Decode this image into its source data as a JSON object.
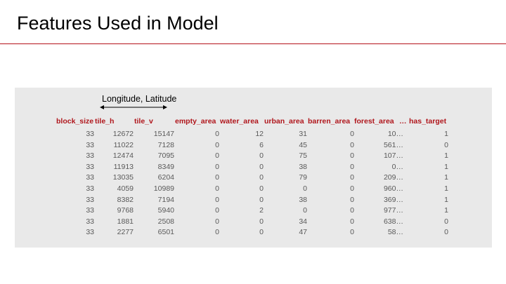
{
  "title": "Features Used in Model",
  "annotation": "Longitude, Latitude",
  "table": {
    "headers": [
      "block_size",
      "tile_h",
      "tile_v",
      "empty_area",
      "water_area",
      "urban_area",
      "barren_area",
      "forest_area",
      "…",
      "has_target"
    ],
    "rows": [
      [
        "33",
        "12672",
        "15147",
        "0",
        "12",
        "31",
        "0",
        "10…",
        "1"
      ],
      [
        "33",
        "11022",
        "7128",
        "0",
        "6",
        "45",
        "0",
        "561…",
        "0"
      ],
      [
        "33",
        "12474",
        "7095",
        "0",
        "0",
        "75",
        "0",
        "107…",
        "1"
      ],
      [
        "33",
        "11913",
        "8349",
        "0",
        "0",
        "38",
        "0",
        "0…",
        "1"
      ],
      [
        "33",
        "13035",
        "6204",
        "0",
        "0",
        "79",
        "0",
        "209…",
        "1"
      ],
      [
        "33",
        "4059",
        "10989",
        "0",
        "0",
        "0",
        "0",
        "960…",
        "1"
      ],
      [
        "33",
        "8382",
        "7194",
        "0",
        "0",
        "38",
        "0",
        "369…",
        "1"
      ],
      [
        "33",
        "9768",
        "5940",
        "0",
        "2",
        "0",
        "0",
        "977…",
        "1"
      ],
      [
        "33",
        "1881",
        "2508",
        "0",
        "0",
        "34",
        "0",
        "638…",
        "0"
      ],
      [
        "33",
        "2277",
        "6501",
        "0",
        "0",
        "47",
        "0",
        "58…",
        "0"
      ]
    ]
  },
  "colors": {
    "accent": "#b0161c",
    "panel": "#e9e9e9",
    "cell_text": "#595959"
  }
}
